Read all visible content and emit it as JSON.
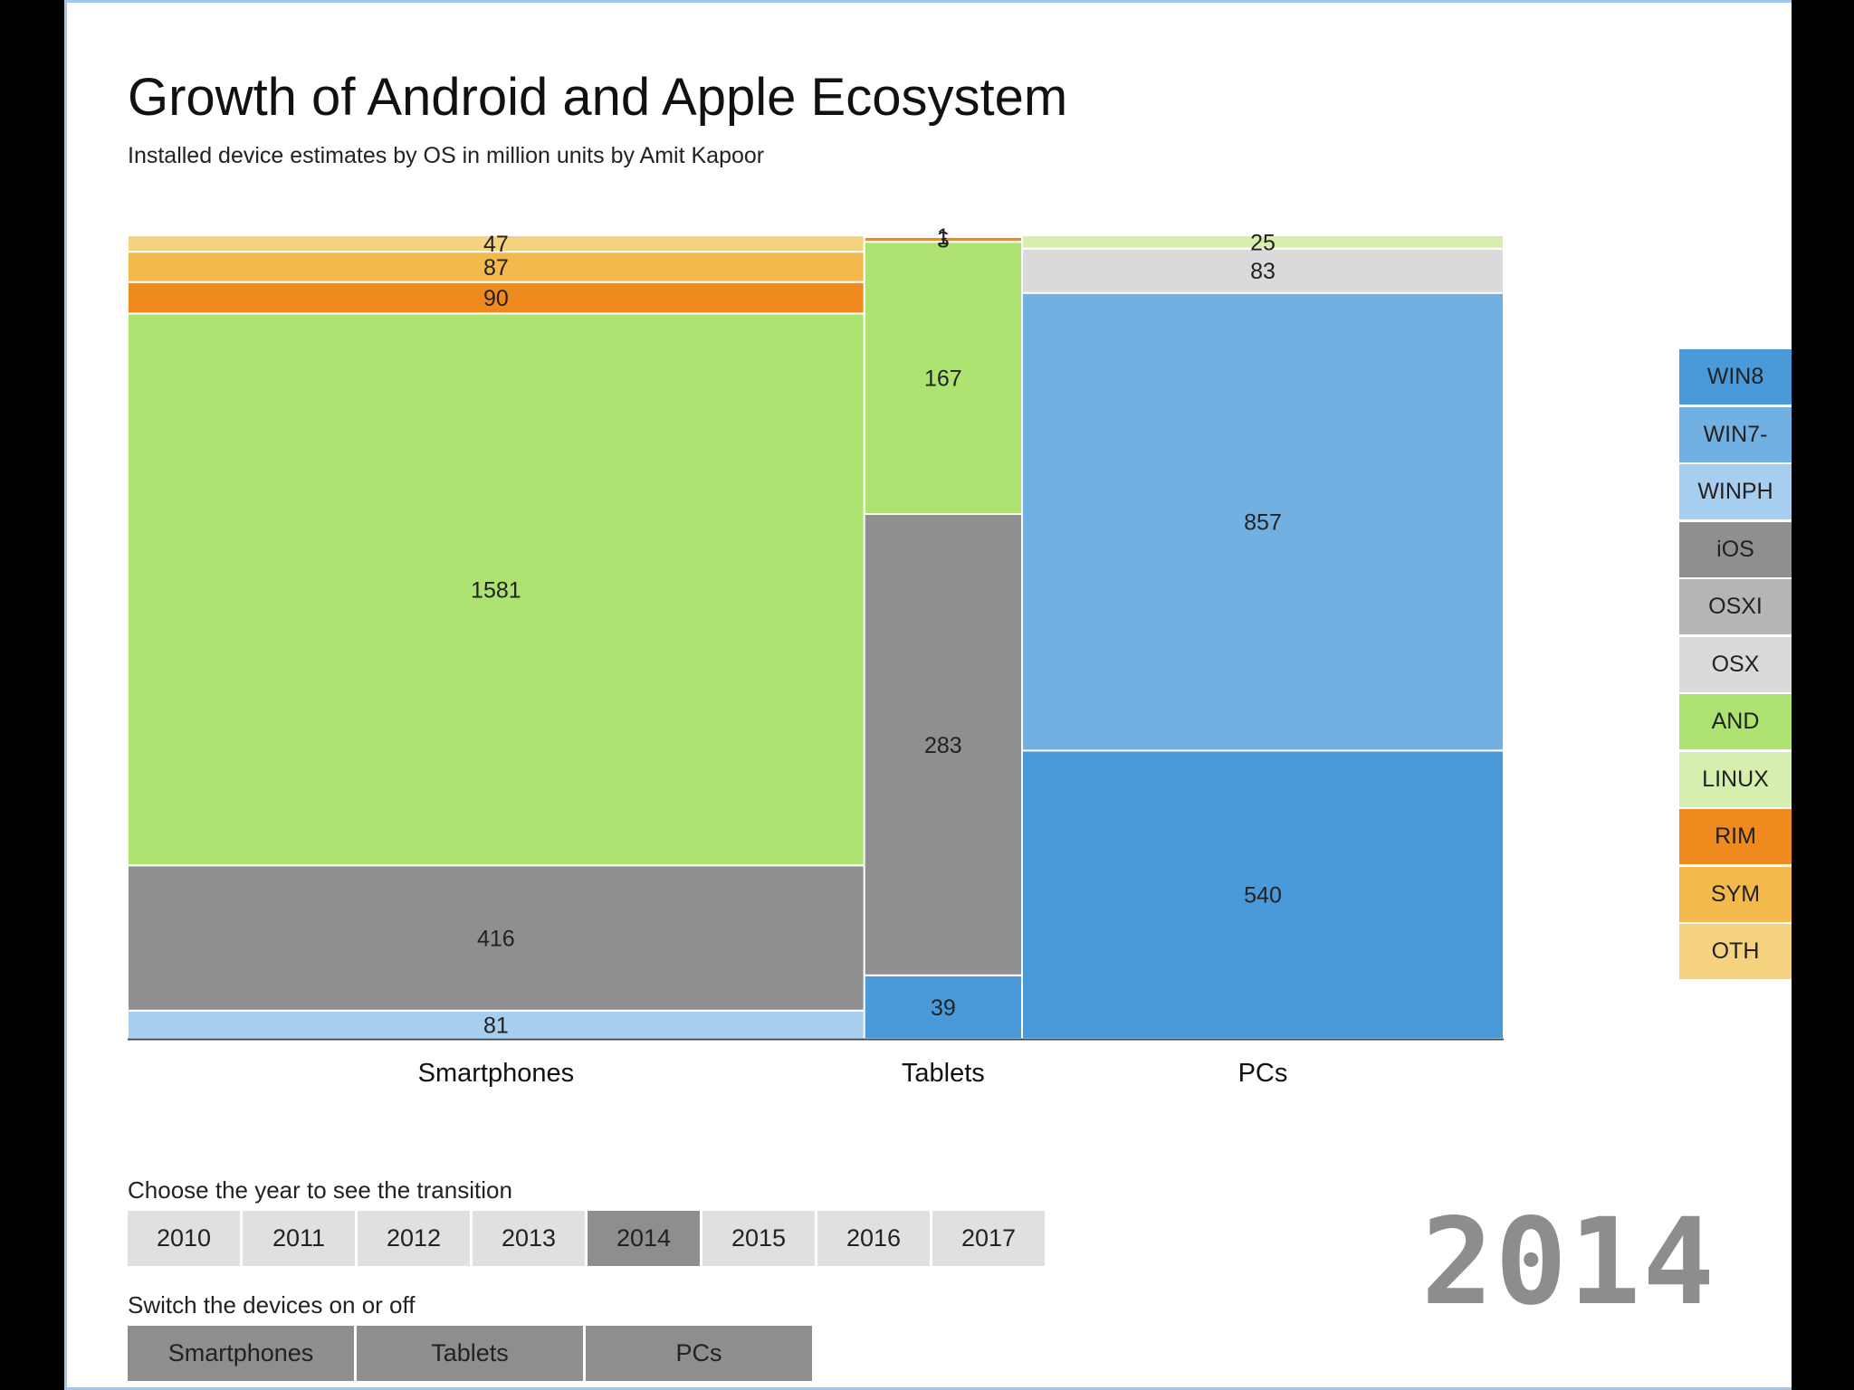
{
  "header": {
    "title": "Growth of Android and Apple Ecosystem",
    "subtitle": "Installed device estimates by OS in million units by Amit Kapoor"
  },
  "colors": {
    "WIN8": "#4a9ad9",
    "WIN7-": "#73b0e2",
    "WINPH": "#a7ceef",
    "iOS": "#8f8e90",
    "OSXI": "#b5b5b6",
    "OSX": "#dadada",
    "AND": "#aee271",
    "LINUX": "#d7efae",
    "RIM": "#ef8a1e",
    "SYM": "#f3b94d",
    "OTH": "#f4d27e"
  },
  "chart_data": {
    "type": "mosaic",
    "title": "Growth of Android and Apple Ecosystem",
    "subtitle": "Installed device estimates by OS in million units by Amit Kapoor",
    "year": "2014",
    "categories": [
      "Smartphones",
      "Tablets",
      "PCs"
    ],
    "series_order": [
      "WIN8",
      "WIN7-",
      "WINPH",
      "iOS",
      "OSXI",
      "OSX",
      "AND",
      "LINUX",
      "RIM",
      "SYM",
      "OTH"
    ],
    "stacks": [
      {
        "category": "Smartphones",
        "segments": [
          {
            "os": "WINPH",
            "value": 81
          },
          {
            "os": "iOS",
            "value": 416
          },
          {
            "os": "AND",
            "value": 1581
          },
          {
            "os": "RIM",
            "value": 90
          },
          {
            "os": "SYM",
            "value": 87
          },
          {
            "os": "OTH",
            "value": 47
          }
        ]
      },
      {
        "category": "Tablets",
        "segments": [
          {
            "os": "WIN8",
            "value": 39
          },
          {
            "os": "iOS",
            "value": 283
          },
          {
            "os": "AND",
            "value": 167
          },
          {
            "os": "RIM",
            "value": 3
          },
          {
            "os": "OTH",
            "value": 1
          }
        ]
      },
      {
        "category": "PCs",
        "segments": [
          {
            "os": "WIN8",
            "value": 540
          },
          {
            "os": "WIN7-",
            "value": 857
          },
          {
            "os": "OSX",
            "value": 83
          },
          {
            "os": "LINUX",
            "value": 25
          }
        ]
      }
    ]
  },
  "legend": {
    "items": [
      "WIN8",
      "WIN7-",
      "WINPH",
      "iOS",
      "OSXI",
      "OSX",
      "AND",
      "LINUX",
      "RIM",
      "SYM",
      "OTH"
    ]
  },
  "controls": {
    "year_label": "Choose the year to see the transition",
    "years": [
      "2010",
      "2011",
      "2012",
      "2013",
      "2014",
      "2015",
      "2016",
      "2017"
    ],
    "selected_year": "2014",
    "device_label": "Switch the devices on or off",
    "devices": [
      "Smartphones",
      "Tablets",
      "PCs"
    ]
  },
  "big_year": "2014"
}
